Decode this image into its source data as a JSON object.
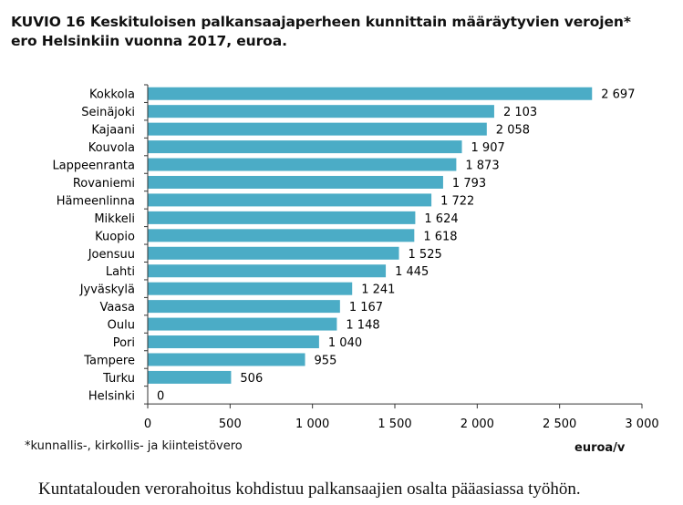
{
  "title_lines": [
    "KUVIO 16 Keskituloisen palkansaajaperheen kunnittain määräytyvien verojen*",
    "ero Helsinkiin vuonna 2017, euroa."
  ],
  "footnote": "*kunnallis-, kirkollis- ja kiinteistövero",
  "unit_label": "euroa/v",
  "body_text": "Kuntatalouden verorahoitus kohdistuu palkansaajien osalta pääasiassa työhön.",
  "colors": {
    "bar": "#4BACC6",
    "axis": "#333333"
  },
  "chart_data": {
    "type": "bar",
    "orientation": "horizontal",
    "title": "KUVIO 16 Keskituloisen palkansaajaperheen kunnittain määräytyvien verojen* ero Helsinkiin vuonna 2017, euroa.",
    "xlabel": "euroa/v",
    "ylabel": "",
    "xlim": [
      0,
      3000
    ],
    "x_ticks": [
      0,
      500,
      1000,
      1500,
      2000,
      2500,
      3000
    ],
    "x_tick_labels": [
      "0",
      "500",
      "1 000",
      "1 500",
      "2 000",
      "2 500",
      "3 000"
    ],
    "grid": false,
    "categories": [
      "Kokkola",
      "Seinäjoki",
      "Kajaani",
      "Kouvola",
      "Lappeenranta",
      "Rovaniemi",
      "Hämeenlinna",
      "Mikkeli",
      "Kuopio",
      "Joensuu",
      "Lahti",
      "Jyväskylä",
      "Vaasa",
      "Oulu",
      "Pori",
      "Tampere",
      "Turku",
      "Helsinki"
    ],
    "values": [
      2697,
      2103,
      2058,
      1907,
      1873,
      1793,
      1722,
      1624,
      1618,
      1525,
      1445,
      1241,
      1167,
      1148,
      1040,
      955,
      506,
      0
    ],
    "value_labels": [
      "2 697",
      "2 103",
      "2 058",
      "1 907",
      "1 873",
      "1 793",
      "1 722",
      "1 624",
      "1 618",
      "1 525",
      "1 445",
      "1 241",
      "1 167",
      "1 148",
      "1 040",
      "955",
      "506",
      "0"
    ]
  }
}
